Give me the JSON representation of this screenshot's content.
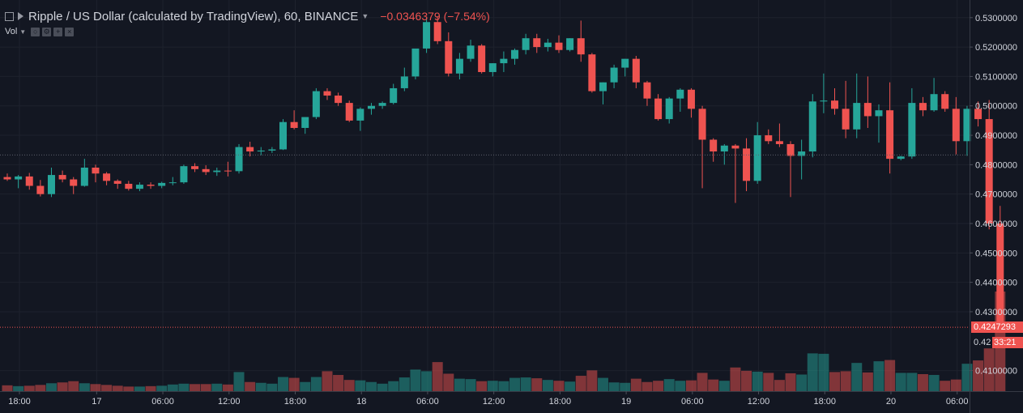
{
  "header": {
    "title": "Ripple / US Dollar (calculated by TradingView), 60, BINANCE",
    "change": "−0.0346379 (−7.54%)",
    "volume_label": "Vol"
  },
  "price_axis": {
    "ticks": [
      "0.5300000",
      "0.5200000",
      "0.5100000",
      "0.5000000",
      "0.4900000",
      "0.4800000",
      "0.4700000",
      "0.4600000",
      "0.4500000",
      "0.4400000",
      "0.4300000",
      "0.4100000"
    ],
    "last_price_label": "0.4247293",
    "countdown": "33:21",
    "partial_label": "0.42"
  },
  "time_axis": {
    "ticks": [
      "18:00",
      "17",
      "06:00",
      "12:00",
      "18:00",
      "18",
      "06:00",
      "12:00",
      "18:00",
      "19",
      "06:00",
      "12:00",
      "18:00",
      "20",
      "06:00"
    ]
  },
  "colors": {
    "background": "#131722",
    "up": "#26a69a",
    "down": "#ef5350",
    "grid": "#1e222d",
    "axis_text": "#d1d4dc"
  },
  "chart_data": {
    "type": "candlestick",
    "timeframe": "60",
    "ylim": [
      0.403,
      0.536
    ],
    "reference_line": 0.4833,
    "last_price": 0.4247293,
    "candles": [
      [
        0.4758,
        0.477,
        0.4745,
        0.475
      ],
      [
        0.475,
        0.4765,
        0.472,
        0.476
      ],
      [
        0.476,
        0.4772,
        0.4715,
        0.4728
      ],
      [
        0.4728,
        0.4748,
        0.4692,
        0.47
      ],
      [
        0.47,
        0.479,
        0.469,
        0.4765
      ],
      [
        0.4765,
        0.478,
        0.474,
        0.475
      ],
      [
        0.475,
        0.4758,
        0.47,
        0.4728
      ],
      [
        0.4728,
        0.482,
        0.4725,
        0.479
      ],
      [
        0.479,
        0.48,
        0.474,
        0.477
      ],
      [
        0.477,
        0.4775,
        0.473,
        0.4745
      ],
      [
        0.4745,
        0.475,
        0.4718,
        0.4735
      ],
      [
        0.4735,
        0.4745,
        0.4712,
        0.4718
      ],
      [
        0.4718,
        0.474,
        0.471,
        0.4732
      ],
      [
        0.4732,
        0.474,
        0.4718,
        0.4728
      ],
      [
        0.4728,
        0.4742,
        0.472,
        0.4738
      ],
      [
        0.4738,
        0.4758,
        0.473,
        0.474
      ],
      [
        0.474,
        0.48,
        0.4735,
        0.4795
      ],
      [
        0.4795,
        0.4805,
        0.4775,
        0.4785
      ],
      [
        0.4785,
        0.4798,
        0.4765,
        0.4775
      ],
      [
        0.4775,
        0.479,
        0.4762,
        0.478
      ],
      [
        0.478,
        0.481,
        0.476,
        0.4778
      ],
      [
        0.4778,
        0.487,
        0.477,
        0.486
      ],
      [
        0.486,
        0.4878,
        0.4828,
        0.4845
      ],
      [
        0.4845,
        0.486,
        0.4832,
        0.4848
      ],
      [
        0.4848,
        0.486,
        0.484,
        0.4852
      ],
      [
        0.4852,
        0.4955,
        0.485,
        0.4945
      ],
      [
        0.4945,
        0.4985,
        0.492,
        0.4925
      ],
      [
        0.4925,
        0.496,
        0.4905,
        0.4962
      ],
      [
        0.4962,
        0.506,
        0.4955,
        0.505
      ],
      [
        0.505,
        0.506,
        0.502,
        0.5035
      ],
      [
        0.5035,
        0.5045,
        0.5,
        0.501
      ],
      [
        0.501,
        0.5018,
        0.4945,
        0.495
      ],
      [
        0.495,
        0.4995,
        0.4915,
        0.499
      ],
      [
        0.499,
        0.501,
        0.497,
        0.5
      ],
      [
        0.5,
        0.5015,
        0.499,
        0.501
      ],
      [
        0.501,
        0.5075,
        0.5005,
        0.506
      ],
      [
        0.506,
        0.513,
        0.505,
        0.51
      ],
      [
        0.51,
        0.519,
        0.509,
        0.5195
      ],
      [
        0.5195,
        0.53,
        0.518,
        0.5285
      ],
      [
        0.5285,
        0.5305,
        0.521,
        0.522
      ],
      [
        0.522,
        0.525,
        0.51,
        0.511
      ],
      [
        0.511,
        0.518,
        0.509,
        0.516
      ],
      [
        0.516,
        0.5225,
        0.515,
        0.5205
      ],
      [
        0.5205,
        0.521,
        0.511,
        0.5115
      ],
      [
        0.5115,
        0.5145,
        0.51,
        0.5145
      ],
      [
        0.5145,
        0.5185,
        0.5115,
        0.516
      ],
      [
        0.516,
        0.5195,
        0.514,
        0.519
      ],
      [
        0.519,
        0.5245,
        0.5175,
        0.523
      ],
      [
        0.523,
        0.5245,
        0.518,
        0.52
      ],
      [
        0.52,
        0.5228,
        0.5185,
        0.5215
      ],
      [
        0.5215,
        0.524,
        0.518,
        0.519
      ],
      [
        0.519,
        0.523,
        0.5185,
        0.523
      ],
      [
        0.523,
        0.529,
        0.515,
        0.5175
      ],
      [
        0.5175,
        0.518,
        0.5045,
        0.505
      ],
      [
        0.505,
        0.508,
        0.5005,
        0.508
      ],
      [
        0.508,
        0.514,
        0.506,
        0.513
      ],
      [
        0.513,
        0.516,
        0.51,
        0.516
      ],
      [
        0.516,
        0.517,
        0.506,
        0.508
      ],
      [
        0.508,
        0.5085,
        0.5,
        0.5025
      ],
      [
        0.5025,
        0.504,
        0.495,
        0.4955
      ],
      [
        0.4955,
        0.503,
        0.494,
        0.5025
      ],
      [
        0.5025,
        0.506,
        0.498,
        0.5055
      ],
      [
        0.5055,
        0.506,
        0.496,
        0.499
      ],
      [
        0.499,
        0.5,
        0.472,
        0.4885
      ],
      [
        0.4885,
        0.489,
        0.481,
        0.4845
      ],
      [
        0.4845,
        0.487,
        0.48,
        0.4865
      ],
      [
        0.4865,
        0.487,
        0.467,
        0.4855
      ],
      [
        0.4855,
        0.489,
        0.471,
        0.4745
      ],
      [
        0.4745,
        0.4945,
        0.4735,
        0.49
      ],
      [
        0.49,
        0.492,
        0.487,
        0.488
      ],
      [
        0.488,
        0.494,
        0.486,
        0.487
      ],
      [
        0.487,
        0.488,
        0.469,
        0.483
      ],
      [
        0.483,
        0.4885,
        0.475,
        0.4845
      ],
      [
        0.4845,
        0.504,
        0.4825,
        0.5015
      ],
      [
        0.5015,
        0.511,
        0.4975,
        0.5018
      ],
      [
        0.5018,
        0.506,
        0.497,
        0.499
      ],
      [
        0.499,
        0.5085,
        0.489,
        0.492
      ],
      [
        0.492,
        0.511,
        0.489,
        0.501
      ],
      [
        0.501,
        0.51,
        0.4925,
        0.4965
      ],
      [
        0.4965,
        0.5005,
        0.4875,
        0.4985
      ],
      [
        0.4985,
        0.508,
        0.477,
        0.482
      ],
      [
        0.482,
        0.483,
        0.4815,
        0.4828
      ],
      [
        0.4828,
        0.506,
        0.482,
        0.501
      ],
      [
        0.501,
        0.503,
        0.4965,
        0.4985
      ],
      [
        0.4985,
        0.5095,
        0.498,
        0.504
      ],
      [
        0.504,
        0.505,
        0.498,
        0.499
      ],
      [
        0.499,
        0.503,
        0.4835,
        0.488
      ],
      [
        0.488,
        0.5,
        0.483,
        0.499
      ],
      [
        0.499,
        0.5015,
        0.493,
        0.4955
      ],
      [
        0.4955,
        0.502,
        0.458,
        0.46
      ],
      [
        0.46,
        0.466,
        0.424,
        0.4247
      ]
    ],
    "volumes": [
      0.014,
      0.012,
      0.013,
      0.015,
      0.019,
      0.021,
      0.024,
      0.019,
      0.017,
      0.015,
      0.013,
      0.011,
      0.011,
      0.012,
      0.013,
      0.016,
      0.018,
      0.017,
      0.017,
      0.018,
      0.016,
      0.046,
      0.022,
      0.02,
      0.018,
      0.034,
      0.032,
      0.022,
      0.034,
      0.048,
      0.039,
      0.027,
      0.026,
      0.022,
      0.018,
      0.024,
      0.033,
      0.052,
      0.048,
      0.07,
      0.042,
      0.03,
      0.029,
      0.024,
      0.025,
      0.024,
      0.032,
      0.033,
      0.031,
      0.027,
      0.025,
      0.023,
      0.037,
      0.05,
      0.032,
      0.021,
      0.02,
      0.03,
      0.022,
      0.025,
      0.029,
      0.025,
      0.026,
      0.044,
      0.028,
      0.025,
      0.057,
      0.049,
      0.047,
      0.044,
      0.027,
      0.043,
      0.04,
      0.091,
      0.09,
      0.046,
      0.048,
      0.068,
      0.045,
      0.072,
      0.075,
      0.044,
      0.044,
      0.041,
      0.039,
      0.025,
      0.028,
      0.066,
      0.074,
      0.103,
      0.24
    ]
  }
}
